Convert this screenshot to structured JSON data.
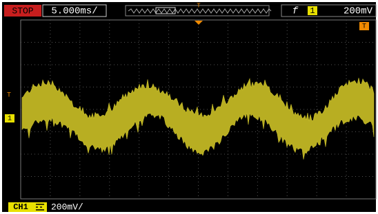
{
  "status": "STOP",
  "timebase": "5.000ms/",
  "trigger_marker": "T",
  "trigger_slope": "f",
  "trigger_channel": "1",
  "trigger_level": "200mV",
  "channel_marker": "1",
  "channel": "CH1",
  "channel_scale": "200mV/"
}
